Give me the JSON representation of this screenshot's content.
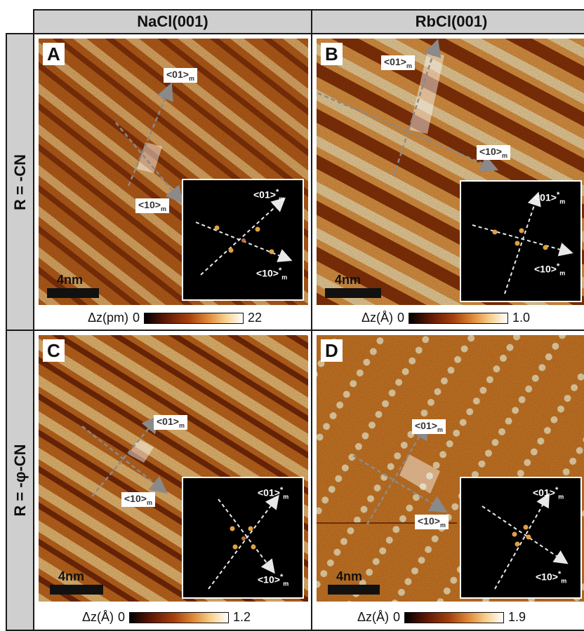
{
  "columns": {
    "left": "NaCl(001)",
    "right": "RbCl(001)"
  },
  "rows": {
    "top": "R = -CN",
    "bottom": "R = -φ-CN"
  },
  "panels": [
    {
      "label": "A",
      "axis_01": "<01>",
      "axis_10": "<10>",
      "sub": "m",
      "inset_01": "<01>",
      "inset_10": "<10>",
      "star": "*",
      "scale": "4nm",
      "cbar_label": "Δz(pm)",
      "cbar_min": "0",
      "cbar_max": "22"
    },
    {
      "label": "B",
      "axis_01": "<01>",
      "axis_10": "<10>",
      "sub": "m",
      "inset_01": "<01>",
      "inset_10": "<10>",
      "star": "*",
      "scale": "4nm",
      "cbar_label": "Δz(Å)",
      "cbar_min": "0",
      "cbar_max": "1.0"
    },
    {
      "label": "C",
      "axis_01": "<01>",
      "axis_10": "<10>",
      "sub": "m",
      "inset_01": "<01>",
      "inset_10": "<10>",
      "star": "*",
      "scale": "4nm",
      "cbar_label": "Δz(Å)",
      "cbar_min": "0",
      "cbar_max": "1.2"
    },
    {
      "label": "D",
      "axis_01": "<01>",
      "axis_10": "<10>",
      "sub": "m",
      "inset_01": "<01>",
      "inset_10": "<10>",
      "star": "*",
      "scale": "4nm",
      "cbar_label": "Δz(Å)",
      "cbar_min": "0",
      "cbar_max": "1.9"
    }
  ],
  "colors": {
    "border": "#1a1a1a",
    "header_bg": "#cfcfcf",
    "afm_base": "#c8661c",
    "afm_dark": "#6a1f05",
    "afm_bright": "#fbe3b3",
    "arrow": "#8a8a8a",
    "fft_spot": "#e0a040"
  }
}
